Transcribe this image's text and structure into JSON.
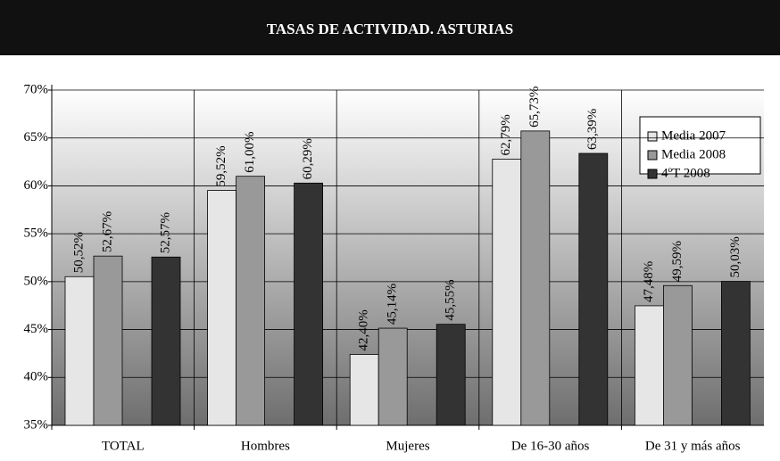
{
  "chart_data": {
    "type": "bar",
    "title": "TASAS DE ACTIVIDAD. ASTURIAS",
    "categories": [
      "TOTAL",
      "Hombres",
      "Mujeres",
      "De 16-30 años",
      "De 31 y más años"
    ],
    "series": [
      {
        "name": "Media 2007",
        "color": "#e6e6e6",
        "values": [
          50.52,
          59.52,
          42.4,
          62.79,
          47.48
        ],
        "value_labels": [
          "50,52%",
          "59,52%",
          "42,40%",
          "62,79%",
          "47,48%"
        ]
      },
      {
        "name": "Media 2008",
        "color": "#999999",
        "values": [
          52.67,
          61.0,
          45.14,
          65.73,
          49.59
        ],
        "value_labels": [
          "52,67%",
          "61,00%",
          "45,14%",
          "65,73%",
          "49,59%"
        ]
      },
      {
        "name": "4ºT 2008",
        "color": "#333333",
        "values": [
          52.57,
          60.29,
          45.55,
          63.39,
          50.03
        ],
        "value_labels": [
          "52,57%",
          "60,29%",
          "45,55%",
          "63,39%",
          "50,03%"
        ]
      }
    ],
    "ylim": [
      35,
      70
    ],
    "yticks": [
      {
        "value": 35,
        "label": "35%"
      },
      {
        "value": 40,
        "label": "40%"
      },
      {
        "value": 45,
        "label": "45%"
      },
      {
        "value": 50,
        "label": "50%"
      },
      {
        "value": 55,
        "label": "55%"
      },
      {
        "value": 60,
        "label": "60%"
      },
      {
        "value": 65,
        "label": "65%"
      },
      {
        "value": 70,
        "label": "70%"
      }
    ],
    "grid": true,
    "legend": "top-right"
  }
}
